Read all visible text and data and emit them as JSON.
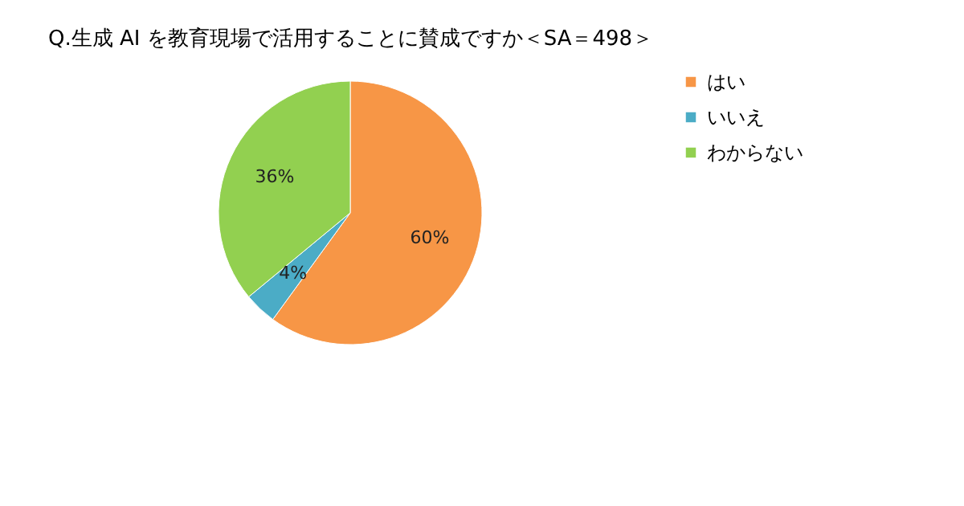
{
  "chart_data": {
    "type": "pie",
    "title": "Q.生成 AI を教育現場で活用することに賛成ですか＜SA＝498＞",
    "categories": [
      "はい",
      "いいえ",
      "わからない"
    ],
    "values": [
      60,
      4,
      36
    ],
    "colors": [
      "#f79646",
      "#4bacc6",
      "#92d050"
    ],
    "value_labels": [
      "60%",
      "4%",
      "36%"
    ],
    "legend": "right"
  }
}
